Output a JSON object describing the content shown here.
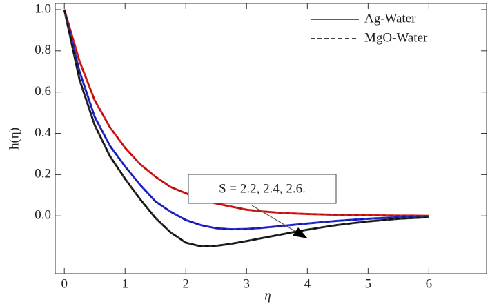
{
  "chart_data": {
    "type": "line",
    "x_label": "η",
    "y_label": "h(η)",
    "annotation": "S = 2.2, 2.4, 2.6.",
    "x": [
      0,
      0.25,
      0.5,
      0.75,
      1,
      1.25,
      1.5,
      1.75,
      2,
      2.25,
      2.5,
      2.75,
      3,
      3.25,
      3.5,
      3.75,
      4,
      4.25,
      4.5,
      4.75,
      5,
      5.25,
      5.5,
      5.75,
      6
    ],
    "series": [
      {
        "name": "Ag-Water",
        "color": "#e8201c",
        "dashed": false,
        "values": [
          1,
          0.75,
          0.56,
          0.43,
          0.33,
          0.25,
          0.19,
          0.14,
          0.11,
          0.08,
          0.06,
          0.045,
          0.03,
          0.022,
          0.016,
          0.012,
          0.009,
          0.007,
          0.005,
          0.004,
          0.003,
          0.002,
          0.001,
          0.001,
          0
        ]
      },
      {
        "name": "MgO-Water",
        "color": "#8a1010",
        "dashed": true,
        "values": [
          1,
          0.75,
          0.56,
          0.43,
          0.33,
          0.25,
          0.19,
          0.14,
          0.11,
          0.08,
          0.06,
          0.045,
          0.03,
          0.022,
          0.016,
          0.012,
          0.009,
          0.007,
          0.005,
          0.004,
          0.003,
          0.002,
          0.001,
          0.001,
          0
        ]
      },
      {
        "name": "Ag-Water",
        "color": "#2a2ee8",
        "dashed": false,
        "values": [
          1,
          0.7,
          0.48,
          0.34,
          0.24,
          0.15,
          0.07,
          0.02,
          -0.02,
          -0.045,
          -0.06,
          -0.065,
          -0.063,
          -0.058,
          -0.051,
          -0.044,
          -0.037,
          -0.03,
          -0.024,
          -0.019,
          -0.014,
          -0.01,
          -0.007,
          -0.004,
          -0.002
        ]
      },
      {
        "name": "MgO-Water",
        "color": "#10106a",
        "dashed": true,
        "values": [
          1,
          0.7,
          0.48,
          0.34,
          0.24,
          0.15,
          0.07,
          0.02,
          -0.02,
          -0.045,
          -0.06,
          -0.065,
          -0.063,
          -0.058,
          -0.051,
          -0.044,
          -0.037,
          -0.03,
          -0.024,
          -0.019,
          -0.014,
          -0.01,
          -0.007,
          -0.004,
          -0.002
        ]
      },
      {
        "name": "Ag-Water",
        "color": "#333333",
        "dashed": false,
        "values": [
          1,
          0.66,
          0.44,
          0.29,
          0.18,
          0.08,
          -0.01,
          -0.08,
          -0.13,
          -0.148,
          -0.145,
          -0.135,
          -0.122,
          -0.108,
          -0.094,
          -0.08,
          -0.067,
          -0.055,
          -0.044,
          -0.035,
          -0.027,
          -0.02,
          -0.014,
          -0.01,
          -0.007
        ]
      },
      {
        "name": "MgO-Water",
        "color": "#000000",
        "dashed": true,
        "values": [
          1,
          0.66,
          0.44,
          0.29,
          0.18,
          0.08,
          -0.01,
          -0.08,
          -0.13,
          -0.148,
          -0.145,
          -0.135,
          -0.122,
          -0.108,
          -0.094,
          -0.08,
          -0.067,
          -0.055,
          -0.044,
          -0.035,
          -0.027,
          -0.02,
          -0.014,
          -0.01,
          -0.007
        ]
      }
    ],
    "xlim": [
      -0.15,
      6.95
    ],
    "ylim": [
      -0.28,
      1.03
    ],
    "xticks": [
      0,
      1,
      2,
      3,
      4,
      5,
      6
    ],
    "yticks": [
      {
        "value": 0,
        "label": "0.0"
      },
      {
        "value": 0.2,
        "label": "0.2"
      },
      {
        "value": 0.4,
        "label": "0.4"
      },
      {
        "value": 0.6,
        "label": "0.6"
      },
      {
        "value": 0.8,
        "label": "0.8"
      },
      {
        "value": 1,
        "label": "1.0"
      }
    ],
    "legend_position": "upper right"
  }
}
